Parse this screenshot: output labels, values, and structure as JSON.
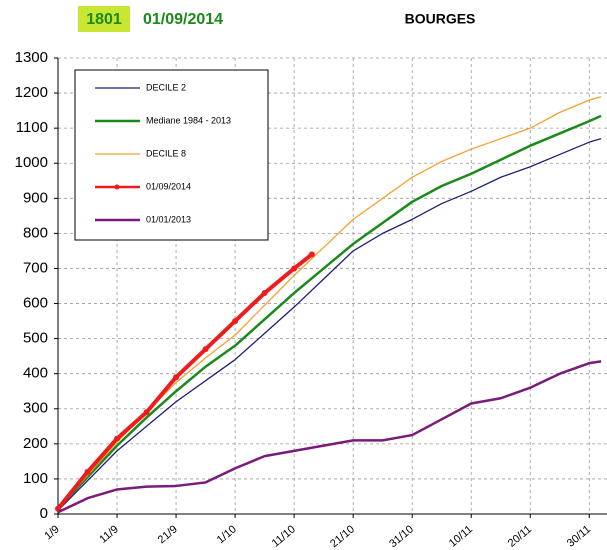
{
  "chart_data": {
    "type": "line",
    "title": "BOURGES",
    "annotations": [
      "1801",
      "01/09/2014"
    ],
    "xlim": [
      0,
      93
    ],
    "xticks": [
      {
        "value": 0,
        "label": "1/9"
      },
      {
        "value": 10,
        "label": "11/9"
      },
      {
        "value": 20,
        "label": "21/9"
      },
      {
        "value": 30,
        "label": "1/10"
      },
      {
        "value": 40,
        "label": "11/10"
      },
      {
        "value": 50,
        "label": "21/10"
      },
      {
        "value": 60,
        "label": "31/10"
      },
      {
        "value": 70,
        "label": "10/11"
      },
      {
        "value": 80,
        "label": "20/11"
      },
      {
        "value": 90,
        "label": "30/11"
      }
    ],
    "ylim": [
      0,
      1300
    ],
    "yticks": [
      0,
      100,
      200,
      300,
      400,
      500,
      600,
      700,
      800,
      900,
      1000,
      1100,
      1200,
      1300
    ],
    "grid": true,
    "series": [
      {
        "name": "DECILE 2",
        "color": "#1f1f7a",
        "width": 1.3,
        "x": [
          0,
          5,
          10,
          15,
          20,
          25,
          30,
          35,
          40,
          45,
          50,
          55,
          60,
          65,
          70,
          75,
          80,
          85,
          90,
          92
        ],
        "values": [
          10,
          95,
          180,
          250,
          320,
          380,
          440,
          515,
          590,
          670,
          750,
          800,
          840,
          885,
          920,
          960,
          990,
          1025,
          1060,
          1070
        ]
      },
      {
        "name": "Mediane 1984 - 2013",
        "color": "#1a8a1a",
        "width": 2.5,
        "x": [
          0,
          5,
          10,
          15,
          20,
          25,
          30,
          35,
          40,
          45,
          50,
          55,
          60,
          65,
          70,
          75,
          80,
          85,
          90,
          92
        ],
        "values": [
          15,
          105,
          195,
          275,
          350,
          420,
          480,
          555,
          630,
          700,
          770,
          830,
          890,
          935,
          970,
          1010,
          1050,
          1085,
          1120,
          1135
        ]
      },
      {
        "name": "DECILE 8",
        "color": "#f5a030",
        "width": 1.3,
        "x": [
          0,
          5,
          10,
          15,
          20,
          25,
          30,
          35,
          40,
          45,
          50,
          55,
          60,
          65,
          70,
          75,
          80,
          85,
          90,
          92
        ],
        "values": [
          15,
          110,
          205,
          290,
          375,
          445,
          510,
          595,
          680,
          760,
          840,
          900,
          960,
          1005,
          1040,
          1070,
          1100,
          1145,
          1180,
          1190
        ]
      },
      {
        "name": "01/09/2014",
        "color": "#ee1c1c",
        "width": 4,
        "markers": true,
        "x": [
          0,
          5,
          10,
          15,
          20,
          25,
          30,
          35,
          40,
          43
        ],
        "values": [
          15,
          120,
          215,
          290,
          390,
          470,
          550,
          630,
          700,
          740
        ]
      },
      {
        "name": "01/01/2013",
        "color": "#7a1a7a",
        "width": 2.5,
        "x": [
          0,
          5,
          10,
          15,
          20,
          25,
          30,
          35,
          40,
          45,
          50,
          55,
          60,
          65,
          70,
          75,
          80,
          85,
          90,
          92
        ],
        "values": [
          5,
          45,
          70,
          78,
          80,
          90,
          130,
          165,
          180,
          195,
          210,
          210,
          225,
          270,
          315,
          330,
          360,
          400,
          430,
          435
        ]
      }
    ]
  }
}
